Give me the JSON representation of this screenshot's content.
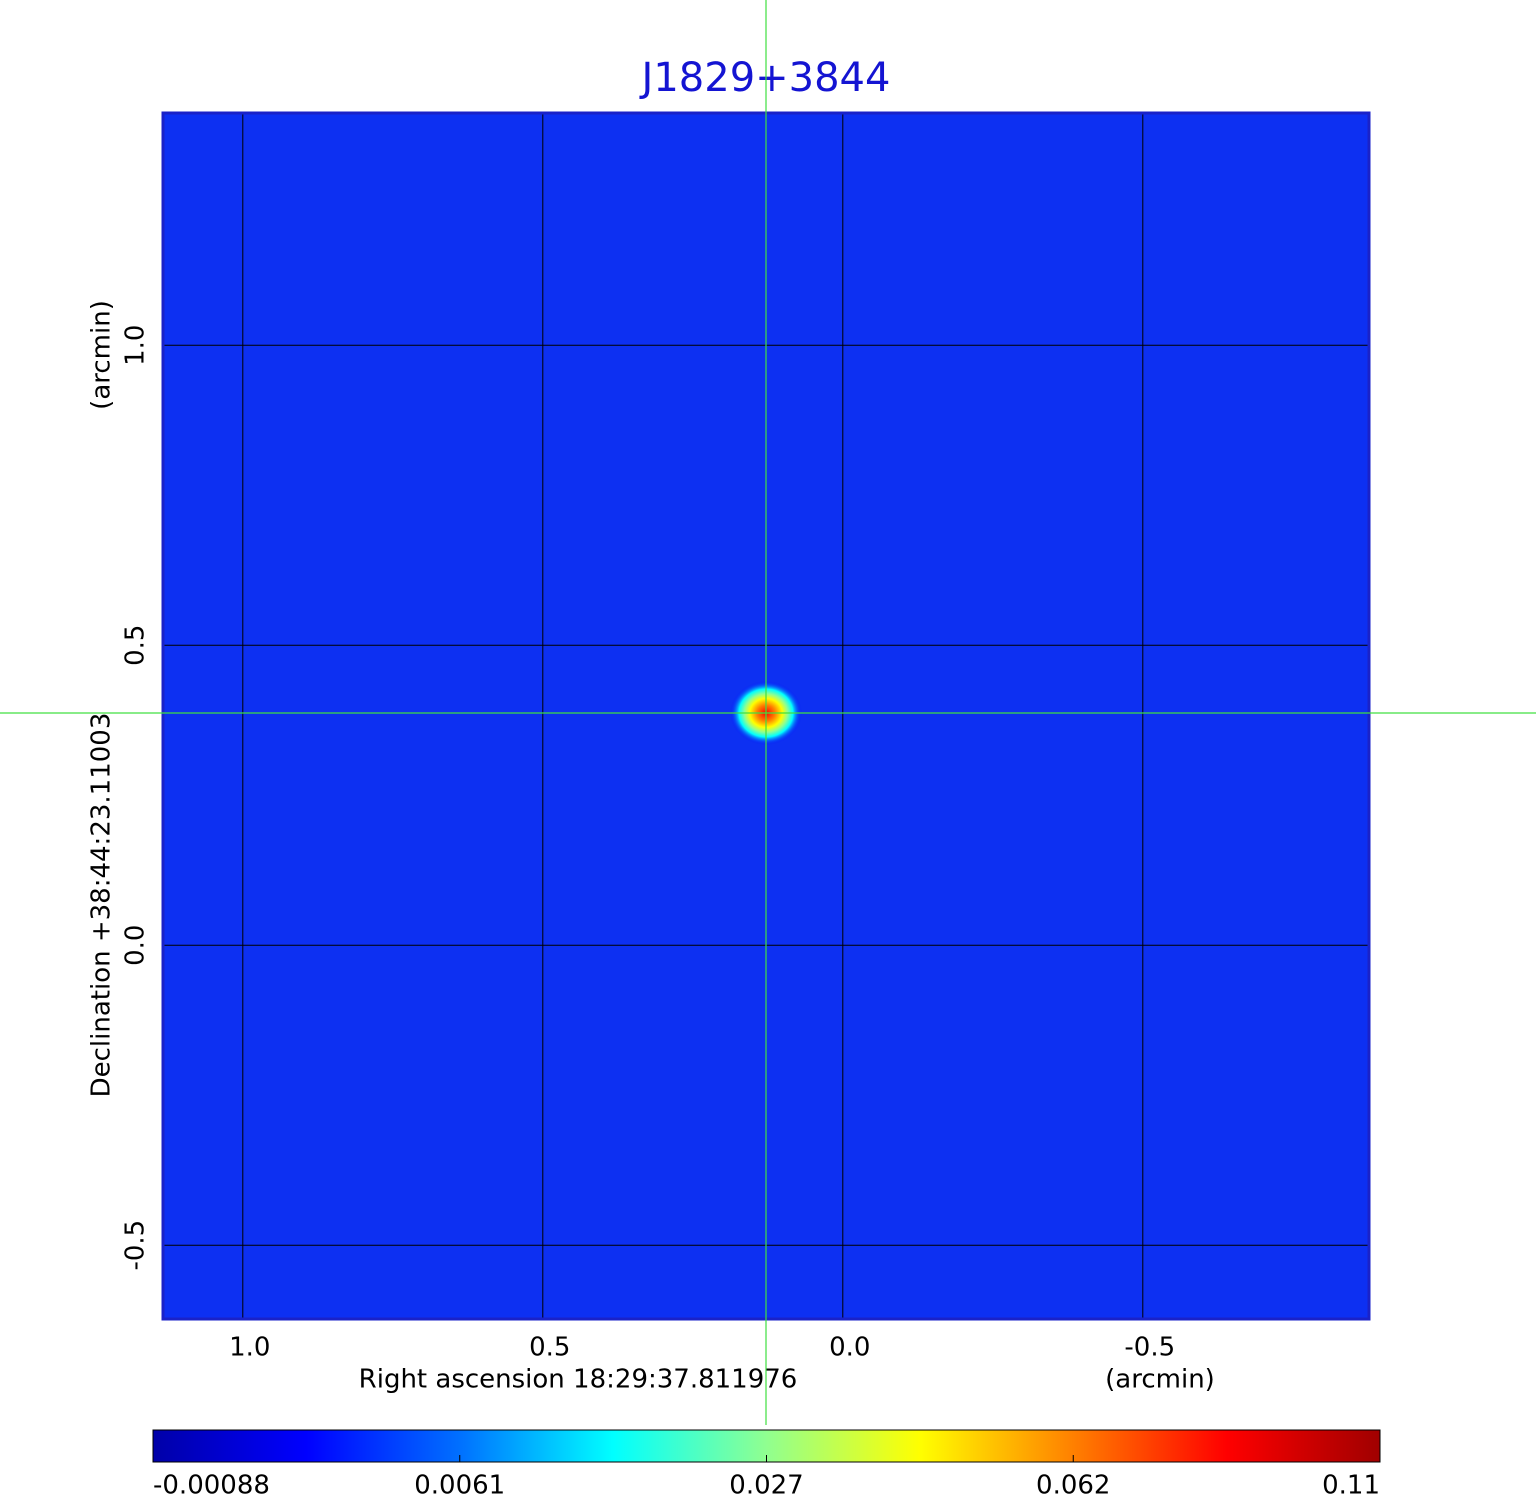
{
  "chart_data": {
    "type": "image",
    "title": "J1829+3844",
    "x_label": "Right ascension  18:29:37.811976",
    "x_unit": "(arcmin)",
    "y_label": "Declination  +38:44:23.11003",
    "y_unit": "(arcmin)",
    "xlim": [
      1.133,
      -0.877
    ],
    "ylim": [
      -0.623,
      1.387
    ],
    "xticks": [
      {
        "value": 1,
        "label": "1.0"
      },
      {
        "value": 0.5,
        "label": "0.5"
      },
      {
        "value": 0,
        "label": "0.0"
      },
      {
        "value": -0.5,
        "label": "-0.5"
      }
    ],
    "yticks": [
      {
        "value": -0.5,
        "label": "-0.5"
      },
      {
        "value": 0,
        "label": "0.0"
      },
      {
        "value": 0.5,
        "label": "0.5"
      },
      {
        "value": 1,
        "label": "1.0"
      }
    ],
    "grid": true,
    "background_color": "#0d30f2",
    "colormap": [
      "#0000a8",
      "#0000ff",
      "#0070ff",
      "#00ffff",
      "#90ff90",
      "#ffff00",
      "#ff8000",
      "#ff0000",
      "#a00000"
    ],
    "clim": [
      -0.00088,
      0.11
    ],
    "colorbar_ticks": [
      -0.00088,
      0.0061,
      0.027,
      0.062,
      0.11
    ],
    "source": {
      "x": 0.128,
      "y": 0.387,
      "peak": 0.11
    }
  }
}
